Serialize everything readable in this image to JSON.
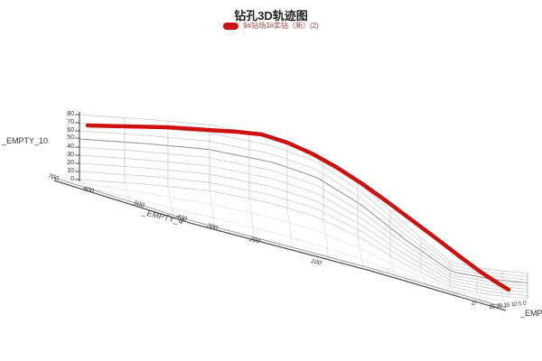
{
  "title": "钻孔3D轨迹图",
  "legend": {
    "label": "9#钻场3#实钻（新）(2)",
    "marker_color": "#cc1111",
    "text_color": "#9e4444"
  },
  "axes": {
    "y_label": "_EMPTY_10",
    "y_ticks": [
      "80",
      "70",
      "60",
      "50",
      "40",
      "30",
      "20",
      "10",
      "0"
    ],
    "x_label": "_EMPTY_4",
    "x_ticks": [
      "700",
      "600",
      "500",
      "400",
      "300",
      "200",
      "100",
      "0"
    ],
    "z_label": "_EMPT",
    "z_ticks": [
      "25",
      "20",
      "15",
      "10",
      "5",
      "0"
    ]
  },
  "colors": {
    "series_red": "#cc1111",
    "grid_light": "#cccccc",
    "grid_mid": "#999999",
    "grid_dark": "#555555"
  },
  "chart_data": {
    "type": "line",
    "projection": "3d-perspective",
    "title": "钻孔3D轨迹图",
    "x_axis": {
      "label": "_EMPTY_4",
      "range": [
        700,
        0
      ],
      "tick_step": 100
    },
    "y_axis": {
      "label": "_EMPTY_10",
      "range": [
        0,
        80
      ],
      "tick_step": 10
    },
    "z_axis": {
      "label": "_EMPT",
      "ticks": [
        25,
        20,
        15,
        10,
        5,
        0
      ]
    },
    "legend_position": "top-center",
    "grid": true,
    "series": [
      {
        "name": "9#钻场3#实钻（新）(2)",
        "color": "#cc1111",
        "points_x_elevation": [
          [
            640,
            66
          ],
          [
            600,
            65
          ],
          [
            550,
            64
          ],
          [
            500,
            64
          ],
          [
            450,
            64
          ],
          [
            400,
            63
          ],
          [
            350,
            61
          ],
          [
            300,
            57
          ],
          [
            275,
            52
          ],
          [
            250,
            46
          ],
          [
            225,
            40
          ],
          [
            200,
            33
          ],
          [
            175,
            26
          ],
          [
            150,
            19
          ],
          [
            125,
            13
          ],
          [
            100,
            8
          ],
          [
            75,
            5
          ],
          [
            50,
            3
          ],
          [
            25,
            1
          ],
          [
            0,
            0
          ]
        ]
      }
    ]
  }
}
